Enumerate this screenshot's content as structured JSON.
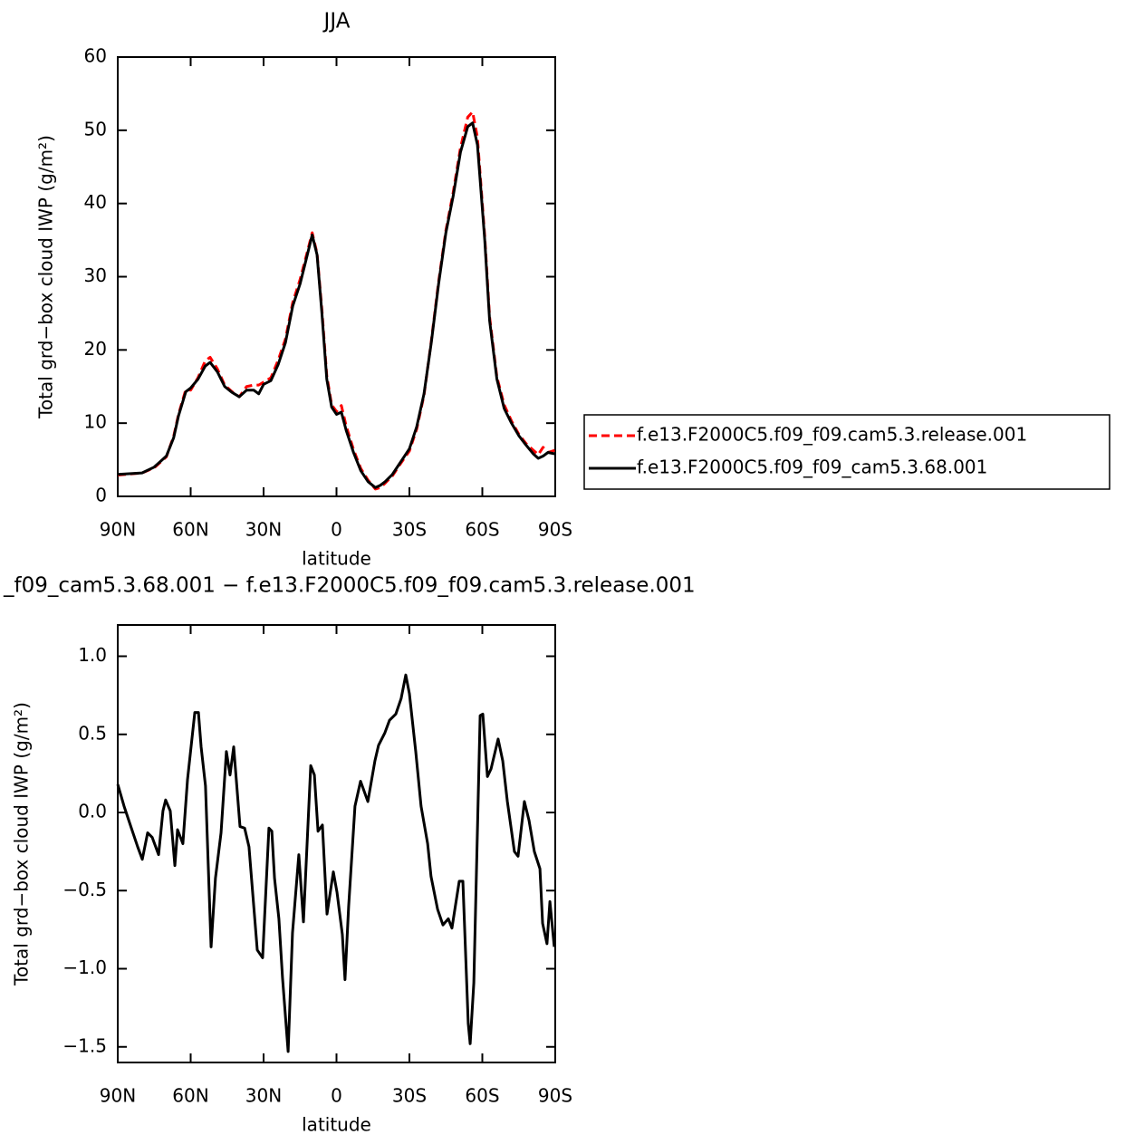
{
  "chart_data": [
    {
      "type": "line",
      "title": "JJA",
      "xlabel": "latitude",
      "ylabel": "Total grd−box cloud IWP (g/m²)",
      "x": [
        90,
        80,
        75,
        70,
        67,
        65,
        62,
        60,
        57,
        54,
        52,
        49,
        46,
        43,
        40,
        37,
        34,
        32,
        30,
        27,
        24,
        21,
        18,
        15,
        12,
        10,
        8,
        6,
        4,
        2,
        0,
        -2,
        -4,
        -7,
        -10,
        -13,
        -16,
        -18,
        -20,
        -23,
        -26,
        -30,
        -33,
        -36,
        -39,
        -42,
        -45,
        -48,
        -51,
        -54,
        -56,
        -58,
        -61,
        -63,
        -66,
        -69,
        -72,
        -75,
        -78,
        -81,
        -83,
        -85,
        -87,
        -90
      ],
      "series": [
        {
          "name": "f.e13.F2000C5.f09_f09.cam5.3.release.001",
          "color": "#ff0000",
          "dashed": true,
          "values": [
            2.9,
            3.2,
            3.9,
            5.4,
            8.2,
            11.2,
            14.6,
            14.5,
            16.2,
            18.5,
            19,
            17.4,
            15.2,
            14.3,
            13.6,
            15,
            15.2,
            15.2,
            15.6,
            16.2,
            18.6,
            21.5,
            26.5,
            29.6,
            33.4,
            36,
            33.2,
            25.5,
            16.5,
            12.5,
            11.6,
            12.4,
            9.6,
            6.4,
            3.8,
            2.2,
            1.0,
            1.2,
            1.8,
            2.8,
            4.3,
            6.2,
            9.2,
            13.8,
            21.2,
            29.3,
            36.3,
            41.5,
            47.6,
            51.8,
            52.5,
            49,
            35.5,
            24.5,
            16.3,
            12.5,
            10.3,
            8.5,
            7.2,
            6.3,
            5.7,
            6.7,
            6.0,
            6.3
          ]
        },
        {
          "name": "f.e13.F2000C5.f09_f09_cam5.3.68.001",
          "color": "#000000",
          "dashed": false,
          "values": [
            3.0,
            3.2,
            4.0,
            5.5,
            8,
            11,
            14.3,
            14.8,
            16,
            17.8,
            18.3,
            17,
            15,
            14.2,
            13.6,
            14.5,
            14.5,
            14.0,
            15.3,
            15.8,
            18,
            21,
            26,
            29,
            33,
            35.7,
            33,
            25,
            16,
            12.2,
            11.2,
            11.5,
            9,
            6,
            3.5,
            2.0,
            1.2,
            1.5,
            2.0,
            3.0,
            4.5,
            6.5,
            9.5,
            14,
            21,
            29,
            36,
            41,
            47,
            50.5,
            51,
            48,
            35,
            24,
            16,
            12,
            10,
            8.3,
            7,
            5.8,
            5.2,
            5.5,
            6.0,
            5.8
          ]
        }
      ],
      "xlim": [
        90,
        -90
      ],
      "xticks": [
        {
          "value": 90,
          "label": "90N"
        },
        {
          "value": 60,
          "label": "60N"
        },
        {
          "value": 30,
          "label": "30N"
        },
        0,
        {
          "value": -30,
          "label": "30S"
        },
        {
          "value": -60,
          "label": "60S"
        },
        {
          "value": -90,
          "label": "90S"
        }
      ],
      "ylim": [
        0,
        60
      ],
      "yticks": [
        0,
        10,
        20,
        30,
        40,
        50,
        60
      ],
      "legend": "outside-right"
    },
    {
      "type": "line",
      "title": "_f09_cam5.3.68.001 − f.e13.F2000C5.f09_f09.cam5.3.release.001",
      "xlabel": "latitude",
      "ylabel": "Total grd−box cloud IWP (g/m²)",
      "x": [
        90,
        87.4,
        84.4,
        81.8,
        79.9,
        77.7,
        75.8,
        73.2,
        71.4,
        70.3,
        68.4,
        66.5,
        65.4,
        63.2,
        61.3,
        58.3,
        56.8,
        55.7,
        53.9,
        51.6,
        49.8,
        47.5,
        45.3,
        43.8,
        42.3,
        39.7,
        37.8,
        36.0,
        32.6,
        30.4,
        27.8,
        26.6,
        25.5,
        23.7,
        22.2,
        19.9,
        18.1,
        15.5,
        13.6,
        10.6,
        9.1,
        7.6,
        5.8,
        3.9,
        1.3,
        -0.2,
        -2.4,
        -3.5,
        -5.0,
        -7.6,
        -9.9,
        -12.9,
        -15.8,
        -17.3,
        -19.9,
        -21.8,
        -24.4,
        -26.6,
        -28.5,
        -30.0,
        -32.6,
        -34.8,
        -37.5,
        -38.9,
        -41.6,
        -43.8,
        -46.0,
        -47.5,
        -50.5,
        -52.0,
        -54.2,
        -55.0,
        -56.5,
        -59.1,
        -60.2,
        -62.1,
        -63.6,
        -66.5,
        -68.4,
        -70.3,
        -73.2,
        -74.7,
        -77.3,
        -79.2,
        -81.4,
        -83.7,
        -84.8,
        -86.6,
        -87.8,
        -89.6
      ],
      "series": [
        {
          "color": "#000000",
          "dashed": false,
          "values": [
            0.18,
            0.04,
            -0.1,
            -0.22,
            -0.3,
            -0.13,
            -0.16,
            -0.27,
            0.01,
            0.08,
            0.01,
            -0.34,
            -0.11,
            -0.2,
            0.21,
            0.64,
            0.64,
            0.42,
            0.17,
            -0.86,
            -0.42,
            -0.13,
            0.39,
            0.24,
            0.42,
            -0.09,
            -0.1,
            -0.22,
            -0.88,
            -0.93,
            -0.1,
            -0.12,
            -0.42,
            -0.68,
            -1.06,
            -1.53,
            -0.77,
            -0.27,
            -0.7,
            0.3,
            0.24,
            -0.12,
            -0.08,
            -0.65,
            -0.38,
            -0.51,
            -0.78,
            -1.07,
            -0.6,
            0.04,
            0.2,
            0.07,
            0.33,
            0.43,
            0.51,
            0.59,
            0.63,
            0.73,
            0.88,
            0.76,
            0.39,
            0.04,
            -0.2,
            -0.41,
            -0.62,
            -0.72,
            -0.68,
            -0.74,
            -0.44,
            -0.44,
            -1.35,
            -1.48,
            -1.09,
            0.62,
            0.63,
            0.23,
            0.28,
            0.47,
            0.33,
            0.07,
            -0.25,
            -0.28,
            0.07,
            -0.05,
            -0.25,
            -0.36,
            -0.71,
            -0.84,
            -0.57,
            -0.86
          ]
        }
      ],
      "xlim": [
        90,
        -90
      ],
      "xticks": [
        {
          "value": 90,
          "label": "90N"
        },
        {
          "value": 60,
          "label": "60N"
        },
        {
          "value": 30,
          "label": "30N"
        },
        0,
        {
          "value": -30,
          "label": "30S"
        },
        {
          "value": -60,
          "label": "60S"
        },
        {
          "value": -90,
          "label": "90S"
        }
      ],
      "ylim": [
        -1.6,
        1.2
      ],
      "yticks": [
        {
          "value": -1.5,
          "label": "−1.5"
        },
        {
          "value": -1,
          "label": "−1.0"
        },
        {
          "value": -0.5,
          "label": "−0.5"
        },
        {
          "value": 0,
          "label": "0.0"
        },
        {
          "value": 0.5,
          "label": "0.5"
        },
        {
          "value": 1,
          "label": "1.0"
        }
      ]
    }
  ]
}
